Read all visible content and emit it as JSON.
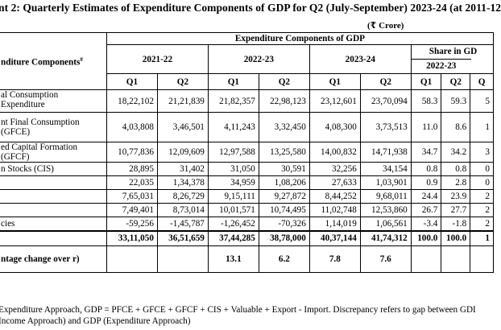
{
  "title": "ent 2: Quarterly Estimates of Expenditure Components of GDP for Q2 (July-September) 2023-24 (at 2011-12",
  "unit": "(₹ Crore)",
  "header": {
    "components_label": "nditure Components",
    "components_mark": "#",
    "group_title": "Expenditure Components of GDP",
    "years": [
      "2021-22",
      "2022-23",
      "2023-24"
    ],
    "share_title": "Share in GD",
    "share_years": [
      "2022-23"
    ],
    "quarters": [
      "Q1",
      "Q2",
      "Q1",
      "Q2",
      "Q1",
      "Q2",
      "Q1",
      "Q2",
      "Q"
    ]
  },
  "rows": [
    {
      "label": "al Consumption Expenditure",
      "values": [
        "18,22,102",
        "21,21,839",
        "21,82,357",
        "22,98,123",
        "23,12,601",
        "23,70,094",
        "58.3",
        "59.3",
        "5"
      ]
    },
    {
      "label": "nt Final Consumption (GFCE)",
      "values": [
        "4,03,808",
        "3,46,501",
        "4,11,243",
        "3,32,450",
        "4,08,300",
        "3,73,513",
        "11.0",
        "8.6",
        "1"
      ]
    },
    {
      "label": "ed Capital Formation (GFCF)",
      "values": [
        "10,77,836",
        "12,09,609",
        "12,97,588",
        "13,25,580",
        "14,00,832",
        "14,71,938",
        "34.7",
        "34.2",
        "3"
      ]
    },
    {
      "label": "n Stocks (CIS)",
      "values": [
        "28,895",
        "31,402",
        "31,050",
        "30,591",
        "32,256",
        "34,154",
        "0.8",
        "0.8",
        "0"
      ]
    },
    {
      "label": "",
      "values": [
        "22,035",
        "1,34,378",
        "34,959",
        "1,08,206",
        "27,633",
        "1,03,901",
        "0.9",
        "2.8",
        "0"
      ]
    },
    {
      "label": "",
      "values": [
        "7,65,031",
        "8,26,729",
        "9,15,111",
        "9,27,872",
        "8,44,252",
        "9,68,011",
        "24.4",
        "23.9",
        "2"
      ]
    },
    {
      "label": "",
      "values": [
        "7,49,401",
        "8,73,014",
        "10,01,571",
        "10,74,495",
        "11,02,748",
        "12,53,860",
        "26.7",
        "27.7",
        "2"
      ]
    },
    {
      "label": "cies",
      "values": [
        "-59,256",
        "-1,45,787",
        "-1,26,452",
        "-70,326",
        "1,14,019",
        "1,06,561",
        "-3.4",
        "-1.8",
        "2"
      ]
    }
  ],
  "total_values": [
    "33,11,050",
    "36,51,659",
    "37,44,285",
    "38,78,000",
    "40,37,144",
    "41,74,312",
    "100.0",
    "100.0",
    "1"
  ],
  "pct_change": {
    "label": "ntage change over r)",
    "values": [
      "",
      "",
      "13.1",
      "6.2",
      "7.8",
      "7.6",
      "",
      "",
      ""
    ]
  },
  "notes": [
    "Expenditure Approach, GDP = PFCE + GFCE + GFCF + CIS + Valuable + Export - Import. Discrepancy refers to gap between GDI",
    "Income Approach) and GDP (Expenditure Approach)"
  ]
}
